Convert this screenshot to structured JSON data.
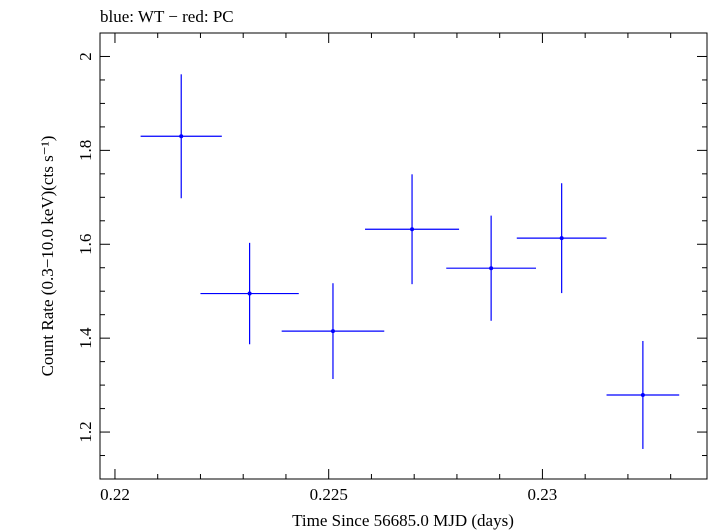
{
  "chart_data": {
    "type": "scatter",
    "title": "blue: WT − red: PC",
    "xlabel": "Time Since 56685.0 MJD (days)",
    "ylabel": "Count Rate (0.3−10.0 keV)(cts s⁻¹)",
    "xlim": [
      0.21965,
      0.23385
    ],
    "ylim": [
      1.1,
      2.05
    ],
    "x_major_ticks": [
      0.22,
      0.225,
      0.23
    ],
    "x_tick_labels": [
      "0.22",
      "0.225",
      "0.23"
    ],
    "y_major_ticks": [
      1.2,
      1.4,
      1.6,
      1.8,
      2.0
    ],
    "y_tick_labels": [
      "1.2",
      "1.4",
      "1.6",
      "1.8",
      "2"
    ],
    "x_minor_step": 0.001,
    "y_minor_step": 0.05,
    "series": [
      {
        "name": "WT",
        "color": "#0000ff",
        "points": [
          {
            "x": 0.22155,
            "xerr": 0.00095,
            "y": 1.83,
            "yerr_up": 0.132,
            "yerr_low": 0.132
          },
          {
            "x": 0.22315,
            "xerr": 0.00115,
            "y": 1.495,
            "yerr_up": 0.108,
            "yerr_low": 0.108
          },
          {
            "x": 0.2251,
            "xerr": 0.0012,
            "y": 1.415,
            "yerr_up": 0.102,
            "yerr_low": 0.102
          },
          {
            "x": 0.22695,
            "xerr": 0.0011,
            "y": 1.632,
            "yerr_up": 0.117,
            "yerr_low": 0.117
          },
          {
            "x": 0.2288,
            "xerr": 0.00105,
            "y": 1.549,
            "yerr_up": 0.112,
            "yerr_low": 0.112
          },
          {
            "x": 0.23045,
            "xerr": 0.00105,
            "y": 1.613,
            "yerr_up": 0.117,
            "yerr_low": 0.117
          },
          {
            "x": 0.23235,
            "xerr": 0.00085,
            "y": 1.279,
            "yerr_up": 0.115,
            "yerr_low": 0.115
          }
        ]
      }
    ]
  }
}
